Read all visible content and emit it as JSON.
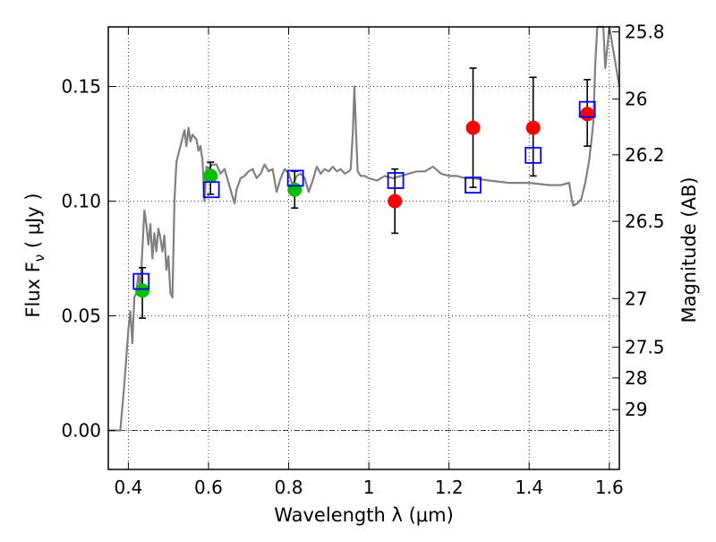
{
  "chart_data": {
    "type": "scatter",
    "title": "",
    "xlabel": "Wavelength  λ (μm)",
    "ylabel": "Flux  F_ν  ( μJy )",
    "ylabel_right": "Magnitude (AB)",
    "xlim": [
      0.35,
      1.625
    ],
    "ylim": [
      -0.017,
      0.176
    ],
    "grid": true,
    "x_ticks": [
      {
        "value": 0.4,
        "label": "0.4"
      },
      {
        "value": 0.6,
        "label": "0.6"
      },
      {
        "value": 0.8,
        "label": "0.8"
      },
      {
        "value": 1.0,
        "label": "1"
      },
      {
        "value": 1.2,
        "label": "1.2"
      },
      {
        "value": 1.4,
        "label": "1.4"
      },
      {
        "value": 1.6,
        "label": "1.6"
      }
    ],
    "y_ticks": [
      {
        "value": 0.0,
        "label": "0.00"
      },
      {
        "value": 0.05,
        "label": "0.05"
      },
      {
        "value": 0.1,
        "label": "0.10"
      },
      {
        "value": 0.15,
        "label": "0.15"
      }
    ],
    "right_ticks": [
      {
        "flux": 0.1738,
        "label": "25.8"
      },
      {
        "flux": 0.1445,
        "label": "26"
      },
      {
        "flux": 0.1202,
        "label": "26.2"
      },
      {
        "flux": 0.0912,
        "label": "26.5"
      },
      {
        "flux": 0.0575,
        "label": "27"
      },
      {
        "flux": 0.0363,
        "label": "27.5"
      },
      {
        "flux": 0.0229,
        "label": "28"
      },
      {
        "flux": 0.0091,
        "label": "29"
      }
    ],
    "series": [
      {
        "kind": "line",
        "color": "#808080",
        "points": [
          [
            0.35,
            0.0
          ],
          [
            0.37,
            0.0
          ],
          [
            0.38,
            0.0
          ],
          [
            0.39,
            0.02
          ],
          [
            0.4,
            0.044
          ],
          [
            0.405,
            0.052
          ],
          [
            0.41,
            0.038
          ],
          [
            0.415,
            0.058
          ],
          [
            0.42,
            0.06
          ],
          [
            0.425,
            0.068
          ],
          [
            0.43,
            0.062
          ],
          [
            0.435,
            0.079
          ],
          [
            0.44,
            0.096
          ],
          [
            0.445,
            0.09
          ],
          [
            0.45,
            0.081
          ],
          [
            0.455,
            0.09
          ],
          [
            0.46,
            0.075
          ],
          [
            0.465,
            0.086
          ],
          [
            0.47,
            0.078
          ],
          [
            0.475,
            0.088
          ],
          [
            0.48,
            0.084
          ],
          [
            0.485,
            0.078
          ],
          [
            0.49,
            0.085
          ],
          [
            0.495,
            0.07
          ],
          [
            0.5,
            0.076
          ],
          [
            0.505,
            0.06
          ],
          [
            0.51,
            0.058
          ],
          [
            0.515,
            0.1
          ],
          [
            0.52,
            0.117
          ],
          [
            0.53,
            0.124
          ],
          [
            0.54,
            0.131
          ],
          [
            0.545,
            0.124
          ],
          [
            0.55,
            0.132
          ],
          [
            0.555,
            0.126
          ],
          [
            0.56,
            0.129
          ],
          [
            0.57,
            0.127
          ],
          [
            0.575,
            0.122
          ],
          [
            0.58,
            0.124
          ],
          [
            0.585,
            0.118
          ],
          [
            0.59,
            0.1
          ],
          [
            0.595,
            0.115
          ],
          [
            0.6,
            0.114
          ],
          [
            0.61,
            0.116
          ],
          [
            0.62,
            0.116
          ],
          [
            0.63,
            0.112
          ],
          [
            0.64,
            0.114
          ],
          [
            0.65,
            0.108
          ],
          [
            0.66,
            0.102
          ],
          [
            0.665,
            0.099
          ],
          [
            0.67,
            0.105
          ],
          [
            0.68,
            0.11
          ],
          [
            0.69,
            0.111
          ],
          [
            0.7,
            0.113
          ],
          [
            0.71,
            0.114
          ],
          [
            0.72,
            0.11
          ],
          [
            0.73,
            0.112
          ],
          [
            0.74,
            0.116
          ],
          [
            0.75,
            0.113
          ],
          [
            0.76,
            0.114
          ],
          [
            0.77,
            0.104
          ],
          [
            0.78,
            0.11
          ],
          [
            0.79,
            0.114
          ],
          [
            0.8,
            0.112
          ],
          [
            0.81,
            0.107
          ],
          [
            0.82,
            0.111
          ],
          [
            0.83,
            0.112
          ],
          [
            0.84,
            0.11
          ],
          [
            0.85,
            0.104
          ],
          [
            0.86,
            0.109
          ],
          [
            0.87,
            0.115
          ],
          [
            0.88,
            0.112
          ],
          [
            0.89,
            0.114
          ],
          [
            0.9,
            0.113
          ],
          [
            0.91,
            0.115
          ],
          [
            0.92,
            0.113
          ],
          [
            0.93,
            0.114
          ],
          [
            0.94,
            0.112
          ],
          [
            0.95,
            0.113
          ],
          [
            0.955,
            0.114
          ],
          [
            0.96,
            0.13
          ],
          [
            0.964,
            0.15
          ],
          [
            0.968,
            0.13
          ],
          [
            0.972,
            0.113
          ],
          [
            0.98,
            0.111
          ],
          [
            0.99,
            0.111
          ],
          [
            1.0,
            0.11
          ],
          [
            1.02,
            0.109
          ],
          [
            1.04,
            0.111
          ],
          [
            1.06,
            0.11
          ],
          [
            1.08,
            0.111
          ],
          [
            1.1,
            0.112
          ],
          [
            1.12,
            0.113
          ],
          [
            1.14,
            0.113
          ],
          [
            1.16,
            0.115
          ],
          [
            1.18,
            0.112
          ],
          [
            1.2,
            0.111
          ],
          [
            1.22,
            0.111
          ],
          [
            1.24,
            0.11
          ],
          [
            1.26,
            0.11
          ],
          [
            1.3,
            0.109
          ],
          [
            1.35,
            0.108
          ],
          [
            1.4,
            0.108
          ],
          [
            1.45,
            0.107
          ],
          [
            1.48,
            0.107
          ],
          [
            1.5,
            0.108
          ],
          [
            1.505,
            0.102
          ],
          [
            1.51,
            0.098
          ],
          [
            1.52,
            0.099
          ],
          [
            1.53,
            0.101
          ],
          [
            1.54,
            0.108
          ],
          [
            1.55,
            0.118
          ],
          [
            1.56,
            0.134
          ],
          [
            1.565,
            0.16
          ],
          [
            1.57,
            0.176
          ],
          [
            1.585,
            0.176
          ],
          [
            1.59,
            0.158
          ],
          [
            1.6,
            0.176
          ],
          [
            1.625,
            0.15
          ]
        ]
      },
      {
        "kind": "points",
        "marker": "circle",
        "color": "#00c000",
        "points": [
          {
            "x": 0.435,
            "y": 0.061,
            "err_lo": 0.049,
            "err_hi": 0.071
          },
          {
            "x": 0.605,
            "y": 0.111,
            "err_lo": 0.103,
            "err_hi": 0.117
          },
          {
            "x": 0.815,
            "y": 0.105,
            "err_lo": 0.097,
            "err_hi": 0.113
          }
        ]
      },
      {
        "kind": "points",
        "marker": "circle",
        "color": "#ff0000",
        "points": [
          {
            "x": 1.065,
            "y": 0.1,
            "err_lo": 0.086,
            "err_hi": 0.114
          },
          {
            "x": 1.26,
            "y": 0.132,
            "err_lo": 0.106,
            "err_hi": 0.158
          },
          {
            "x": 1.41,
            "y": 0.132,
            "err_lo": 0.111,
            "err_hi": 0.154
          },
          {
            "x": 1.545,
            "y": 0.138,
            "err_lo": 0.124,
            "err_hi": 0.153
          }
        ]
      },
      {
        "kind": "points",
        "marker": "square",
        "color": "#0000ff",
        "points": [
          {
            "x": 0.432,
            "y": 0.065
          },
          {
            "x": 0.607,
            "y": 0.105
          },
          {
            "x": 0.817,
            "y": 0.11
          },
          {
            "x": 1.067,
            "y": 0.109
          },
          {
            "x": 1.26,
            "y": 0.107
          },
          {
            "x": 1.41,
            "y": 0.12
          },
          {
            "x": 1.545,
            "y": 0.14
          }
        ]
      }
    ],
    "reference_line": {
      "y": 0.0,
      "style": "dash-dot",
      "color": "#000000"
    }
  }
}
